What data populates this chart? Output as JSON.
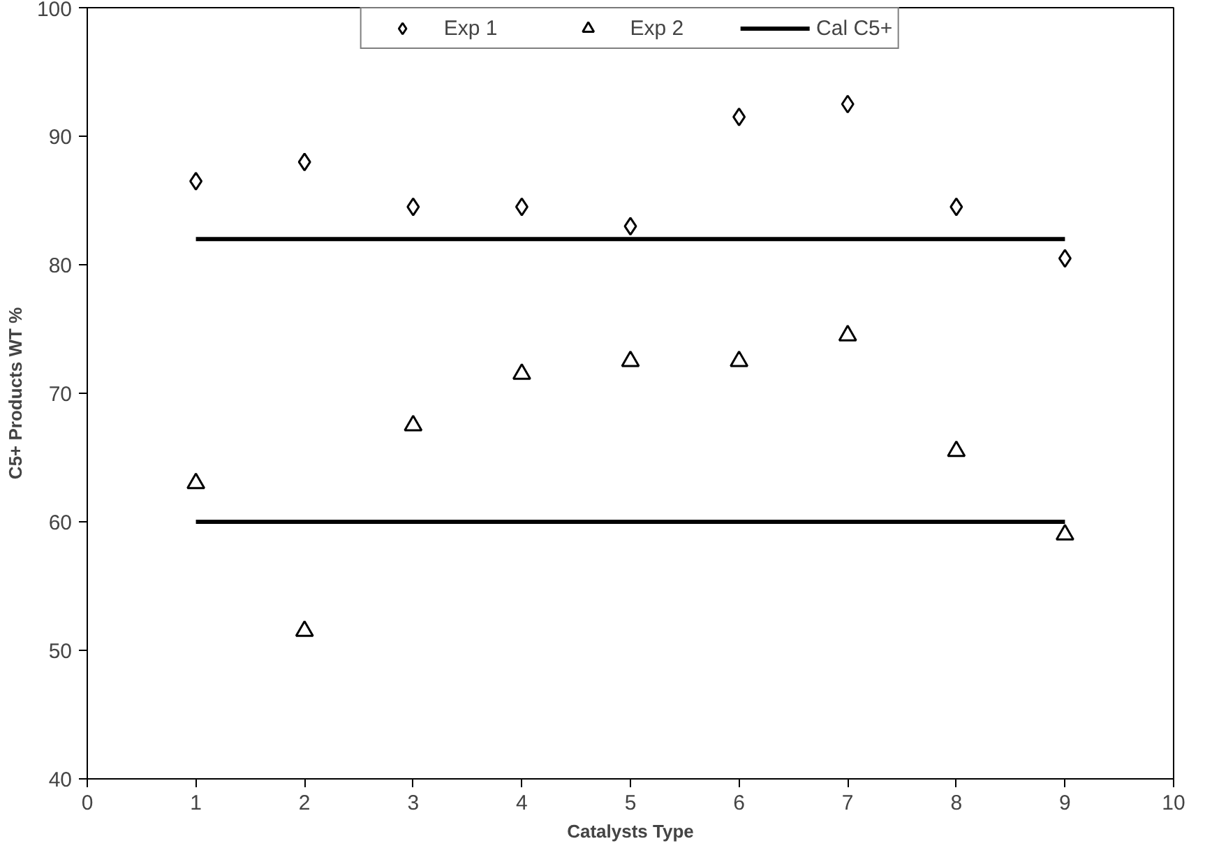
{
  "chart_data": {
    "type": "scatter",
    "xlabel": "Catalysts Type",
    "ylabel": "C5+ Products WT %",
    "x": [
      1,
      2,
      3,
      4,
      5,
      6,
      7,
      8,
      9
    ],
    "series": [
      {
        "name": "Exp 1",
        "color": "#000000",
        "marker": "diamond",
        "values": [
          86.5,
          88,
          84.5,
          84.5,
          83,
          91.5,
          92.5,
          84.5,
          80.5
        ]
      },
      {
        "name": "Exp 2",
        "color": "#000000",
        "marker": "triangle",
        "values": [
          63,
          51.5,
          67.5,
          71.5,
          72.5,
          72.5,
          74.5,
          65.5,
          59
        ]
      },
      {
        "name": "Cal C5+",
        "type": "line",
        "color": "#000000",
        "values": [
          82,
          82,
          82,
          82,
          82,
          82,
          82,
          82,
          82
        ]
      },
      {
        "type": "line",
        "color": "#000000",
        "values": [
          60,
          60,
          60,
          60,
          60,
          60,
          60,
          60,
          60
        ]
      }
    ],
    "xlim": [
      0,
      10
    ],
    "ylim": [
      40,
      100
    ],
    "xticks": [
      0,
      1,
      2,
      3,
      4,
      5,
      6,
      7,
      8,
      9,
      10
    ],
    "yticks": [
      40,
      50,
      60,
      70,
      80,
      90,
      100
    ],
    "grid": false,
    "legend": "top"
  }
}
